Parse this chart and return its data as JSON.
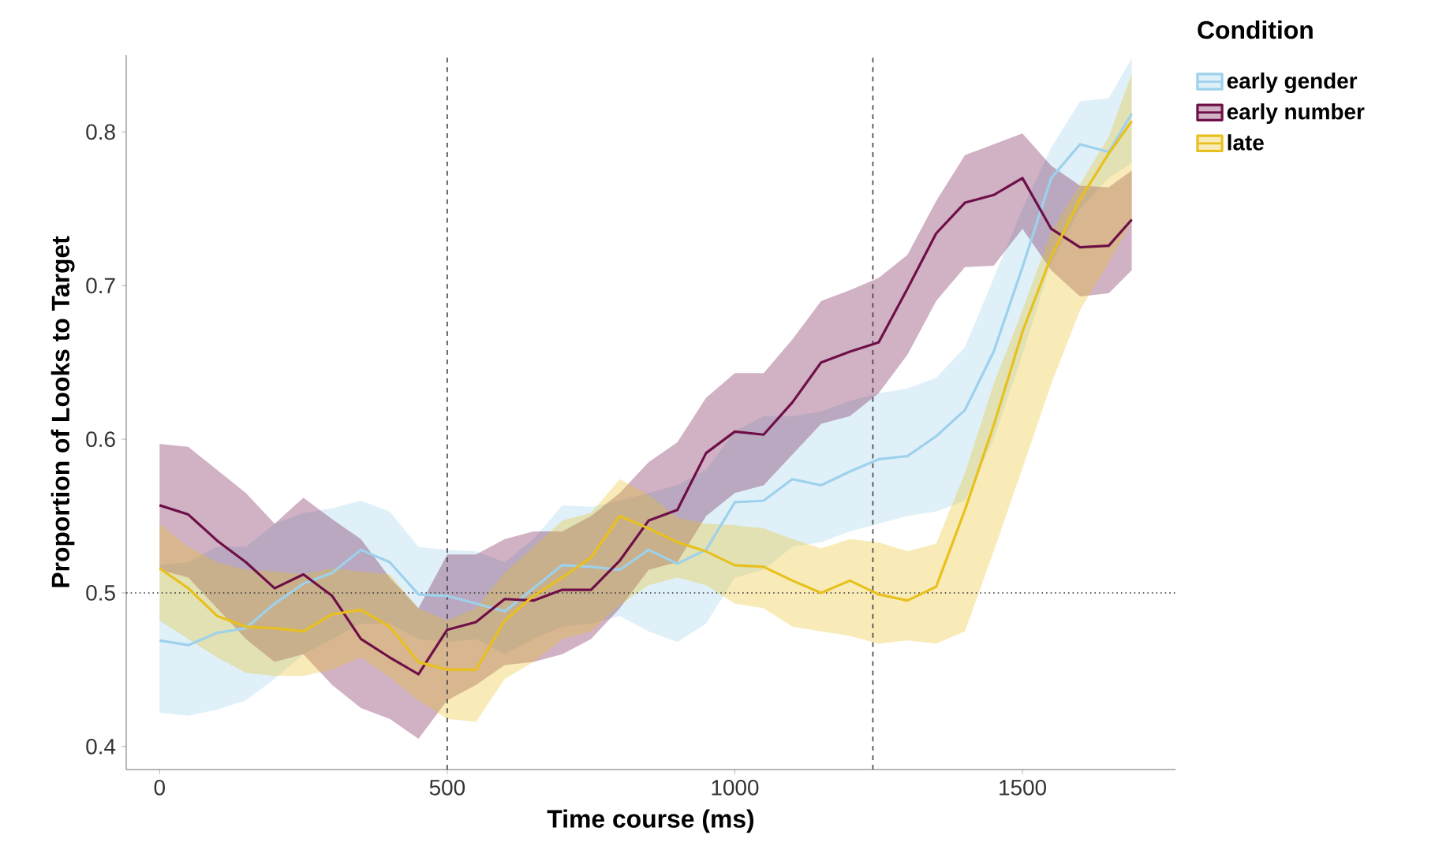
{
  "chart_data": {
    "type": "line",
    "xlabel": "Time course (ms)",
    "ylabel": "Proportion of Looks to Target",
    "legend_title": "Condition",
    "x": [
      0,
      50,
      100,
      150,
      200,
      250,
      300,
      350,
      400,
      450,
      500,
      550,
      600,
      650,
      700,
      750,
      800,
      850,
      900,
      950,
      1000,
      1050,
      1100,
      1150,
      1200,
      1250,
      1300,
      1350,
      1400,
      1450,
      1500,
      1550,
      1600,
      1650,
      1690
    ],
    "series": [
      {
        "name": "early gender",
        "color": "#9dd1ec",
        "values": [
          0.469,
          0.466,
          0.474,
          0.477,
          0.493,
          0.506,
          0.513,
          0.528,
          0.52,
          0.499,
          0.498,
          0.493,
          0.488,
          0.503,
          0.518,
          0.517,
          0.515,
          0.528,
          0.519,
          0.528,
          0.559,
          0.56,
          0.574,
          0.57,
          0.579,
          0.587,
          0.589,
          0.602,
          0.619,
          0.657,
          0.712,
          0.77,
          0.792,
          0.787,
          0.812
        ],
        "lower": [
          0.422,
          0.42,
          0.424,
          0.43,
          0.444,
          0.46,
          0.47,
          0.48,
          0.48,
          0.47,
          0.468,
          0.47,
          0.46,
          0.47,
          0.478,
          0.48,
          0.485,
          0.475,
          0.468,
          0.48,
          0.51,
          0.515,
          0.53,
          0.533,
          0.54,
          0.545,
          0.55,
          0.553,
          0.56,
          0.6,
          0.655,
          0.715,
          0.75,
          0.77,
          0.78
        ],
        "upper": [
          0.518,
          0.52,
          0.53,
          0.53,
          0.545,
          0.552,
          0.555,
          0.56,
          0.553,
          0.53,
          0.528,
          0.527,
          0.52,
          0.535,
          0.557,
          0.556,
          0.56,
          0.565,
          0.57,
          0.58,
          0.605,
          0.615,
          0.615,
          0.618,
          0.625,
          0.63,
          0.633,
          0.64,
          0.66,
          0.705,
          0.75,
          0.79,
          0.82,
          0.822,
          0.848
        ]
      },
      {
        "name": "early number",
        "color": "#6e0f47",
        "values": [
          0.557,
          0.551,
          0.534,
          0.52,
          0.503,
          0.512,
          0.498,
          0.47,
          0.458,
          0.447,
          0.476,
          0.481,
          0.496,
          0.495,
          0.502,
          0.502,
          0.521,
          0.547,
          0.554,
          0.591,
          0.605,
          0.603,
          0.624,
          0.65,
          0.657,
          0.663,
          0.698,
          0.734,
          0.754,
          0.759,
          0.77,
          0.737,
          0.725,
          0.726,
          0.743
        ],
        "lower": [
          0.515,
          0.51,
          0.49,
          0.47,
          0.455,
          0.46,
          0.44,
          0.425,
          0.418,
          0.405,
          0.43,
          0.44,
          0.453,
          0.455,
          0.46,
          0.47,
          0.49,
          0.515,
          0.52,
          0.55,
          0.565,
          0.57,
          0.59,
          0.61,
          0.615,
          0.63,
          0.655,
          0.69,
          0.712,
          0.713,
          0.737,
          0.71,
          0.693,
          0.695,
          0.71
        ],
        "upper": [
          0.597,
          0.595,
          0.58,
          0.565,
          0.545,
          0.562,
          0.548,
          0.535,
          0.51,
          0.49,
          0.525,
          0.525,
          0.535,
          0.54,
          0.54,
          0.55,
          0.565,
          0.585,
          0.598,
          0.627,
          0.643,
          0.643,
          0.665,
          0.69,
          0.697,
          0.705,
          0.72,
          0.755,
          0.785,
          0.792,
          0.799,
          0.778,
          0.765,
          0.764,
          0.775
        ]
      },
      {
        "name": "late",
        "color": "#e8c01e",
        "values": [
          0.516,
          0.503,
          0.485,
          0.478,
          0.477,
          0.475,
          0.486,
          0.489,
          0.478,
          0.455,
          0.45,
          0.45,
          0.482,
          0.498,
          0.51,
          0.523,
          0.55,
          0.542,
          0.533,
          0.527,
          0.518,
          0.517,
          0.508,
          0.5,
          0.508,
          0.499,
          0.495,
          0.504,
          0.554,
          0.609,
          0.67,
          0.719,
          0.756,
          0.786,
          0.807
        ],
        "lower": [
          0.482,
          0.47,
          0.458,
          0.448,
          0.446,
          0.446,
          0.45,
          0.458,
          0.445,
          0.43,
          0.418,
          0.416,
          0.444,
          0.455,
          0.47,
          0.475,
          0.492,
          0.505,
          0.51,
          0.505,
          0.493,
          0.49,
          0.478,
          0.475,
          0.472,
          0.467,
          0.469,
          0.467,
          0.475,
          0.527,
          0.581,
          0.636,
          0.684,
          0.715,
          0.742
        ],
        "upper": [
          0.545,
          0.53,
          0.52,
          0.515,
          0.514,
          0.512,
          0.516,
          0.514,
          0.512,
          0.49,
          0.482,
          0.49,
          0.513,
          0.53,
          0.547,
          0.552,
          0.574,
          0.564,
          0.549,
          0.545,
          0.544,
          0.542,
          0.535,
          0.529,
          0.535,
          0.533,
          0.527,
          0.532,
          0.578,
          0.636,
          0.684,
          0.735,
          0.766,
          0.797,
          0.838
        ]
      }
    ],
    "xlim": [
      -58,
      1766
    ],
    "ylim": [
      0.385,
      0.85
    ],
    "xticks": [
      0,
      500,
      1000,
      1500
    ],
    "yticks": [
      0.4,
      0.5,
      0.6,
      0.7,
      0.8
    ],
    "ref_lines": [
      {
        "axis": "x",
        "value": 500,
        "line_style": "dashed"
      },
      {
        "axis": "x",
        "value": 1240,
        "line_style": "dashed"
      },
      {
        "axis": "y",
        "value": 0.5,
        "line_style": "dotted"
      }
    ],
    "grid": false,
    "legend": "top right",
    "line_style": "solid"
  }
}
